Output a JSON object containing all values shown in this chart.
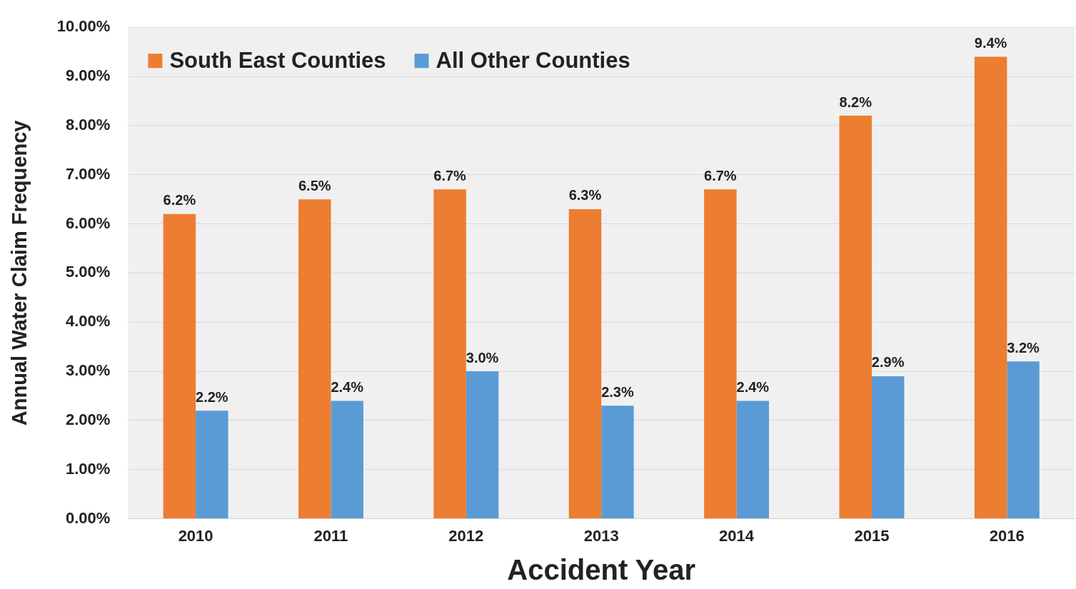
{
  "chart_data": {
    "type": "bar",
    "xlabel": "Accident Year",
    "ylabel": "Annual Water Claim Frequency",
    "categories": [
      "2010",
      "2011",
      "2012",
      "2013",
      "2014",
      "2015",
      "2016"
    ],
    "series": [
      {
        "name": "South East Counties",
        "color": "#ed7d31",
        "values": [
          6.2,
          6.5,
          6.7,
          6.3,
          6.7,
          8.2,
          9.4
        ],
        "value_labels": [
          "6.2%",
          "6.5%",
          "6.7%",
          "6.3%",
          "6.7%",
          "8.2%",
          "9.4%"
        ]
      },
      {
        "name": "All Other Counties",
        "color": "#5b9bd5",
        "values": [
          2.2,
          2.4,
          3.0,
          2.3,
          2.4,
          2.9,
          3.2
        ],
        "value_labels": [
          "2.2%",
          "2.4%",
          "3.0%",
          "2.3%",
          "2.4%",
          "2.9%",
          "3.2%"
        ]
      }
    ],
    "ylim": [
      0,
      10
    ],
    "yticks": [
      {
        "value": 0,
        "label": "0.00%"
      },
      {
        "value": 1,
        "label": "1.00%"
      },
      {
        "value": 2,
        "label": "2.00%"
      },
      {
        "value": 3,
        "label": "3.00%"
      },
      {
        "value": 4,
        "label": "4.00%"
      },
      {
        "value": 5,
        "label": "5.00%"
      },
      {
        "value": 6,
        "label": "6.00%"
      },
      {
        "value": 7,
        "label": "7.00%"
      },
      {
        "value": 8,
        "label": "8.00%"
      },
      {
        "value": 9,
        "label": "9.00%"
      },
      {
        "value": 10,
        "label": "10.00%"
      }
    ],
    "grid": "y",
    "legend": "top left"
  }
}
